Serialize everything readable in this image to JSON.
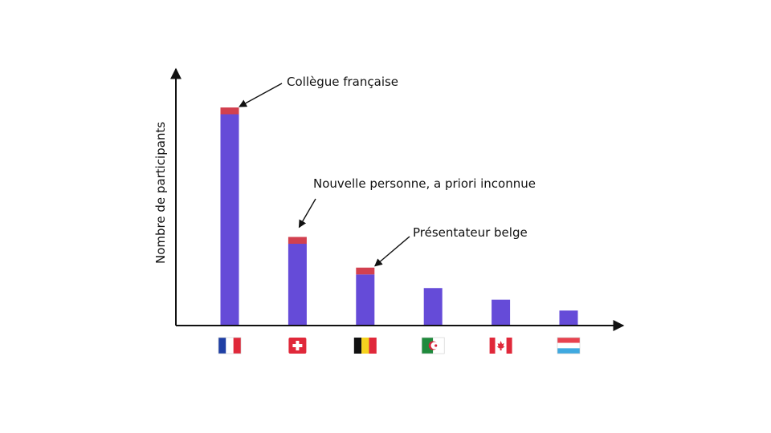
{
  "chart_data": {
    "type": "bar",
    "ylabel": "Nombre de participants",
    "categories": [
      "France",
      "Suisse",
      "Belgique",
      "Algérie",
      "Canada",
      "Luxembourg"
    ],
    "series": [
      {
        "values": [
          31,
          12,
          7.5,
          5.5,
          3.8,
          2.2
        ]
      },
      {
        "values": [
          1,
          1,
          1,
          0,
          0,
          0
        ]
      }
    ],
    "ylim": [
      0,
      36
    ],
    "grid": false,
    "annotations": [
      {
        "text": "Collègue française",
        "category": "France"
      },
      {
        "text": "Nouvelle personne, a priori inconnue",
        "category": "Suisse"
      },
      {
        "text": "Présentateur belge",
        "category": "Belgique"
      }
    ]
  },
  "colors": {
    "main": "#654bd8",
    "highlight": "#d2404f",
    "axis": "#111111"
  },
  "flag_icons": [
    "flag-france-icon",
    "flag-switzerland-icon",
    "flag-belgium-icon",
    "flag-algeria-icon",
    "flag-canada-icon",
    "flag-luxembourg-icon"
  ]
}
